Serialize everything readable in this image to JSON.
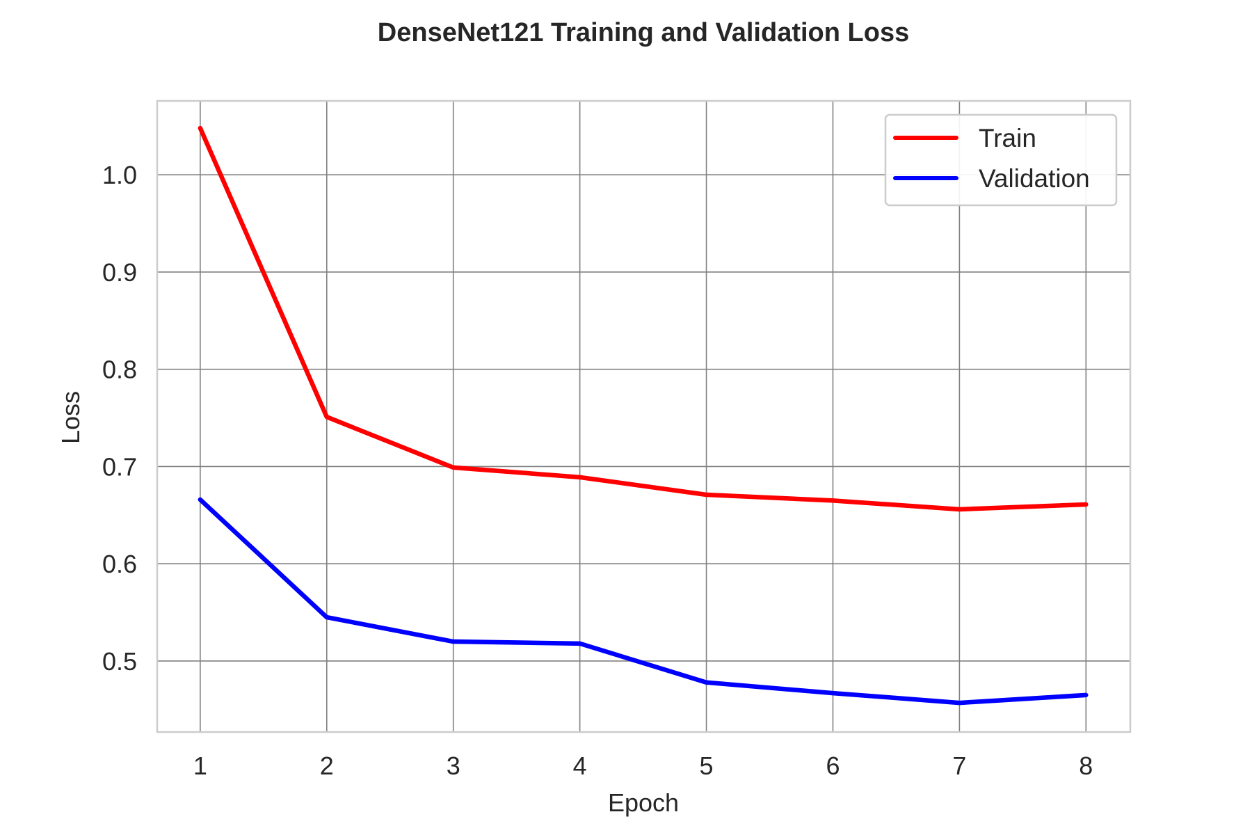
{
  "chart_data": {
    "type": "line",
    "title": "DenseNet121 Training and Validation Loss",
    "xlabel": "Epoch",
    "ylabel": "Loss",
    "x": [
      1,
      2,
      3,
      4,
      5,
      6,
      7,
      8
    ],
    "xlim": [
      0.66,
      8.35
    ],
    "ylim": [
      0.427,
      1.076
    ],
    "x_ticks": [
      1,
      2,
      3,
      4,
      5,
      6,
      7,
      8
    ],
    "y_ticks": [
      0.5,
      0.6,
      0.7,
      0.8,
      0.9,
      1.0
    ],
    "y_tick_labels": [
      "0.5",
      "0.6",
      "0.7",
      "0.8",
      "0.9",
      "1.0"
    ],
    "grid": true,
    "legend_position": "top-right",
    "series": [
      {
        "name": "Train",
        "color": "#ff0000",
        "values": [
          1.048,
          0.751,
          0.699,
          0.689,
          0.671,
          0.665,
          0.656,
          0.661
        ]
      },
      {
        "name": "Validation",
        "color": "#0000ff",
        "values": [
          0.666,
          0.545,
          0.52,
          0.518,
          0.478,
          0.467,
          0.457,
          0.465
        ]
      }
    ]
  }
}
